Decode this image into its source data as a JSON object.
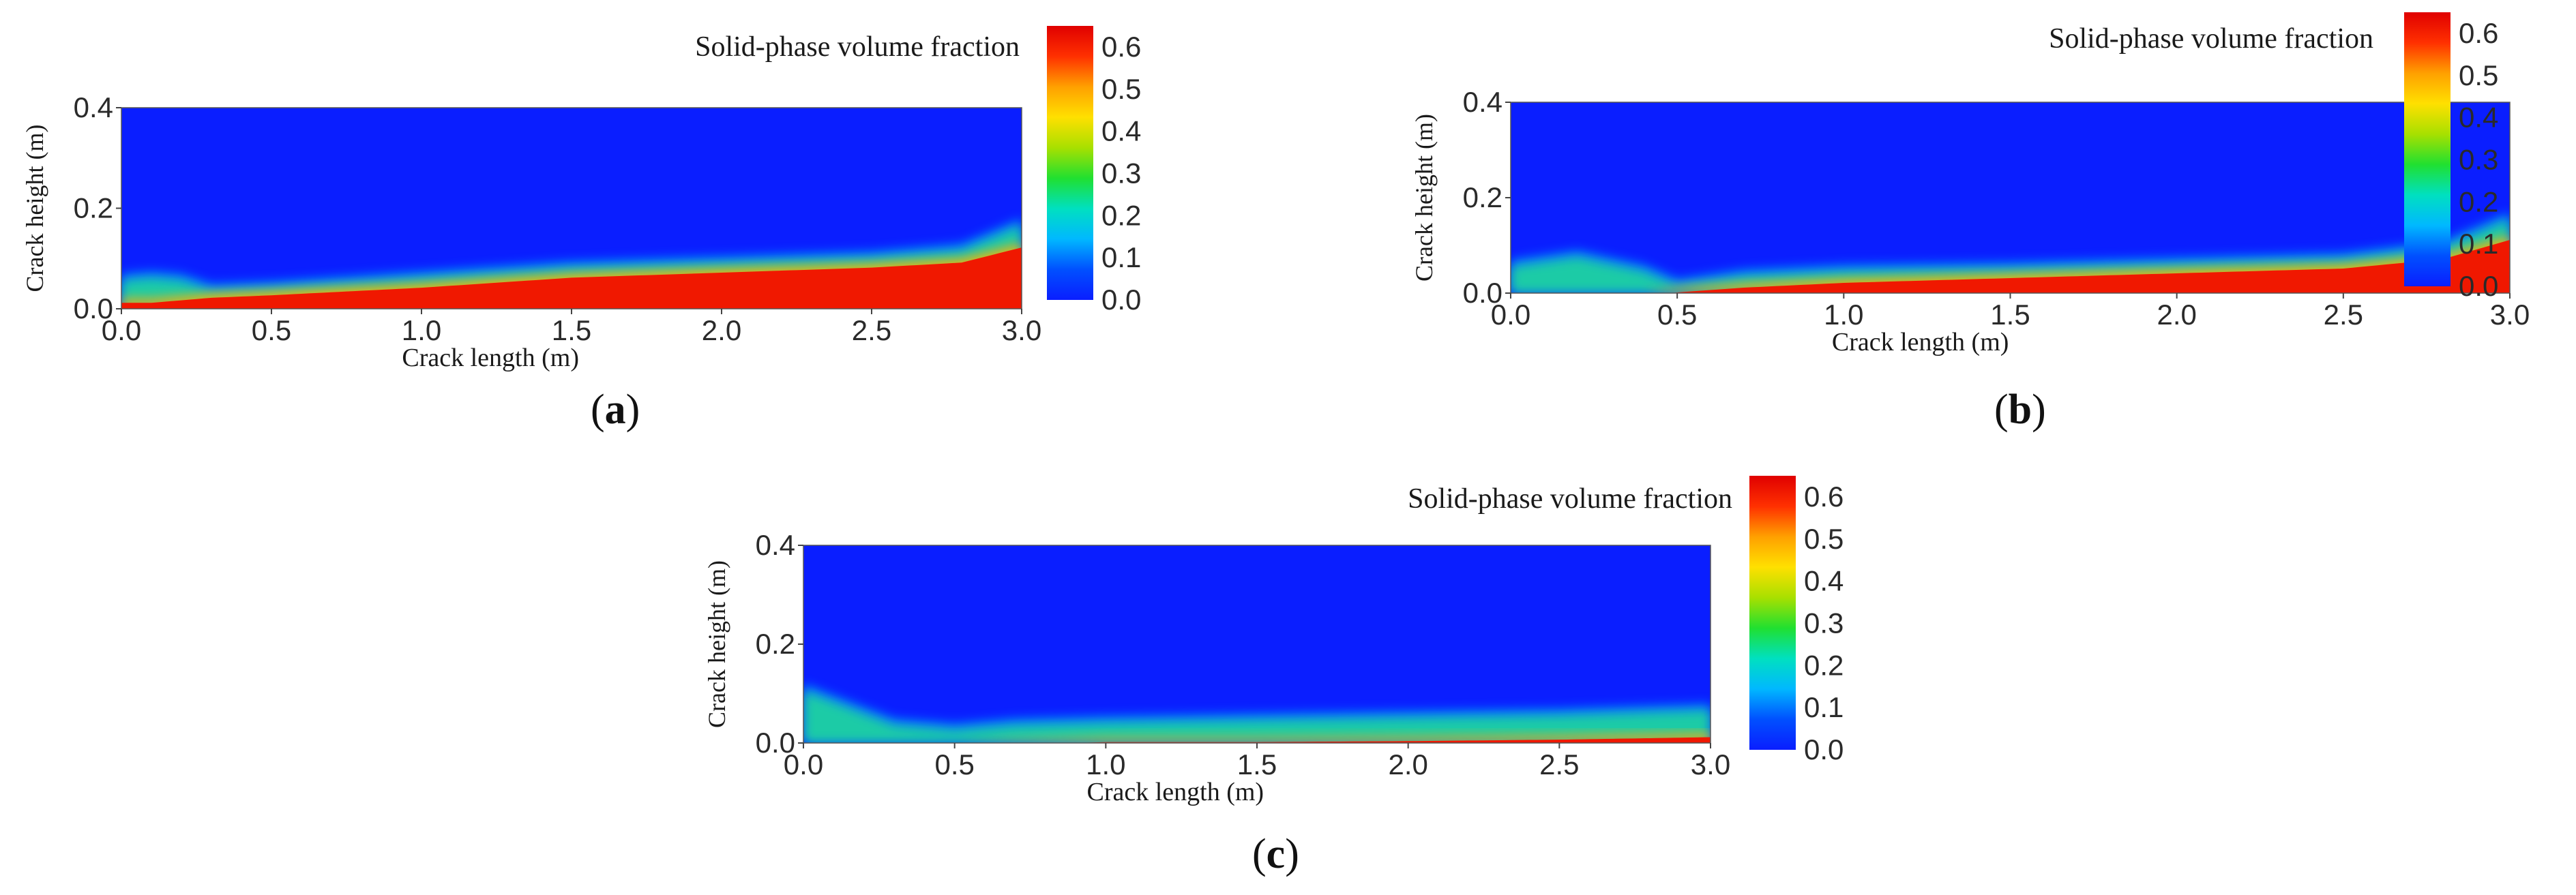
{
  "chart_data": [
    {
      "type": "heatmap",
      "panel_label": "a",
      "title": "Solid-phase volume fraction",
      "xlabel": "Crack length (m)",
      "ylabel": "Crack height (m)",
      "xlim": [
        0.0,
        3.0
      ],
      "ylim": [
        0.0,
        0.4
      ],
      "x_ticks": [
        "0.0",
        "0.5",
        "1.0",
        "1.5",
        "2.0",
        "2.5",
        "3.0"
      ],
      "y_ticks": [
        "0.0",
        "0.2",
        "0.4"
      ],
      "colorbar": {
        "range": [
          0.0,
          0.65
        ],
        "ticks": [
          "0.0",
          "0.1",
          "0.2",
          "0.3",
          "0.4",
          "0.5",
          "0.6"
        ],
        "colors": [
          "#0a1eff",
          "#0050ff",
          "#00b8ff",
          "#00e0c0",
          "#20e030",
          "#a8e000",
          "#ffe000",
          "#ffa000",
          "#ff3000",
          "#e00000"
        ]
      },
      "bed_profile": {
        "x": [
          0.0,
          0.1,
          0.2,
          0.3,
          0.5,
          1.0,
          1.5,
          2.0,
          2.5,
          2.8,
          3.0
        ],
        "bed_height": [
          0.02,
          0.02,
          0.025,
          0.03,
          0.035,
          0.05,
          0.07,
          0.08,
          0.09,
          0.1,
          0.13
        ],
        "interface_height": [
          0.07,
          0.075,
          0.07,
          0.05,
          0.055,
          0.075,
          0.095,
          0.105,
          0.115,
          0.13,
          0.18
        ]
      }
    },
    {
      "type": "heatmap",
      "panel_label": "b",
      "title": "Solid-phase volume fraction",
      "xlabel": "Crack length (m)",
      "ylabel": "Crack height (m)",
      "xlim": [
        0.0,
        3.0
      ],
      "ylim": [
        0.0,
        0.4
      ],
      "x_ticks": [
        "0.0",
        "0.5",
        "1.0",
        "1.5",
        "2.0",
        "2.5",
        "3.0"
      ],
      "y_ticks": [
        "0.0",
        "0.2",
        "0.4"
      ],
      "colorbar": {
        "range": [
          0.0,
          0.65
        ],
        "ticks": [
          "0.0",
          "0.1",
          "0.2",
          "0.3",
          "0.4",
          "0.5",
          "0.6"
        ],
        "colors": [
          "#0a1eff",
          "#0050ff",
          "#00b8ff",
          "#00e0c0",
          "#20e030",
          "#a8e000",
          "#ffe000",
          "#ffa000",
          "#ff3000",
          "#e00000"
        ]
      },
      "bed_profile": {
        "x": [
          0.0,
          0.2,
          0.4,
          0.5,
          0.7,
          1.0,
          1.5,
          2.0,
          2.5,
          2.8,
          3.0
        ],
        "bed_height": [
          0.0,
          0.0,
          0.0,
          0.01,
          0.02,
          0.03,
          0.04,
          0.05,
          0.06,
          0.08,
          0.12
        ],
        "interface_height": [
          0.07,
          0.09,
          0.06,
          0.03,
          0.05,
          0.06,
          0.065,
          0.075,
          0.085,
          0.11,
          0.17
        ]
      }
    },
    {
      "type": "heatmap",
      "panel_label": "c",
      "title": "Solid-phase volume fraction",
      "xlabel": "Crack length (m)",
      "ylabel": "Crack height (m)",
      "xlim": [
        0.0,
        3.0
      ],
      "ylim": [
        0.0,
        0.4
      ],
      "x_ticks": [
        "0.0",
        "0.5",
        "1.0",
        "1.5",
        "2.0",
        "2.5",
        "3.0"
      ],
      "y_ticks": [
        "0.0",
        "0.2",
        "0.4"
      ],
      "colorbar": {
        "range": [
          0.0,
          0.65
        ],
        "ticks": [
          "0.0",
          "0.1",
          "0.2",
          "0.3",
          "0.4",
          "0.5",
          "0.6"
        ],
        "colors": [
          "#0a1eff",
          "#0050ff",
          "#00b8ff",
          "#00e0c0",
          "#20e030",
          "#a8e000",
          "#ffe000",
          "#ffa000",
          "#ff3000",
          "#e00000"
        ]
      },
      "bed_profile": {
        "x": [
          0.0,
          0.3,
          0.5,
          0.7,
          1.0,
          1.5,
          2.0,
          2.5,
          3.0
        ],
        "bed_height": [
          0.0,
          0.0,
          0.0,
          0.005,
          0.01,
          0.01,
          0.012,
          0.015,
          0.02
        ],
        "interface_height": [
          0.12,
          0.05,
          0.04,
          0.05,
          0.055,
          0.06,
          0.065,
          0.07,
          0.08
        ]
      }
    }
  ]
}
